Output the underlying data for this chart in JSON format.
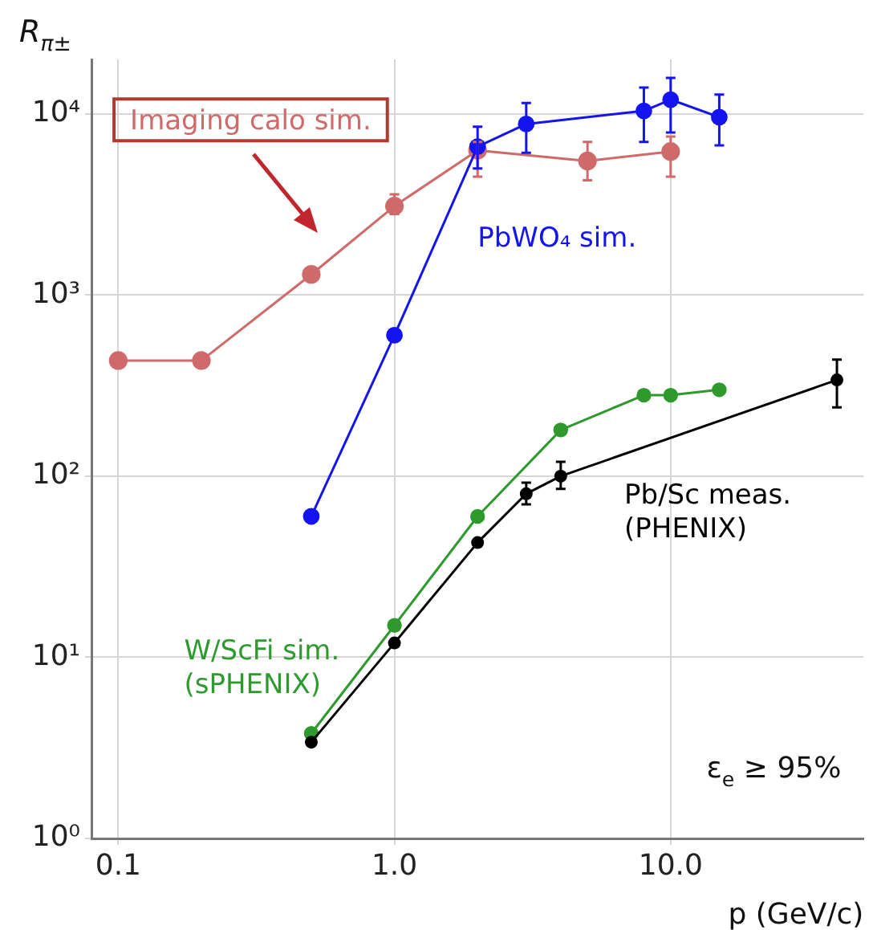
{
  "chart_data": {
    "type": "line",
    "ylabel": "R$_{π±}$",
    "xlabel": "p (GeV/c)",
    "log": "xy",
    "grid": true,
    "legend": false,
    "marker": "circle",
    "line_style": "solid",
    "xlim": [
      0.08,
      50
    ],
    "ylim": [
      1,
      20000
    ],
    "xticks": [
      {
        "value": 0.1,
        "label": "0.1"
      },
      {
        "value": 1,
        "label": "1.0"
      },
      {
        "value": 10,
        "label": "10.0"
      }
    ],
    "yticks": [
      {
        "value": 1,
        "label": "10⁰"
      },
      {
        "value": 10,
        "label": "10¹"
      },
      {
        "value": 100,
        "label": "10²"
      },
      {
        "value": 1000,
        "label": "10³"
      },
      {
        "value": 10000,
        "label": "10⁴"
      }
    ],
    "series": [
      {
        "name": "Imaging calo sim.",
        "color": "#d06a6a",
        "x": [
          0.1,
          0.2,
          0.5,
          1,
          2,
          5,
          10
        ],
        "values": [
          435,
          435,
          1300,
          3100,
          6300,
          5500,
          6200
        ],
        "errors": [
          null,
          null,
          null,
          [
            2800,
            3600
          ],
          [
            4500,
            7000
          ],
          [
            4300,
            7000
          ],
          [
            4500,
            7500
          ]
        ]
      },
      {
        "name": "PbWO₄ sim.",
        "color": "#1414f0",
        "x": [
          0.5,
          1,
          2,
          3,
          8,
          10,
          15
        ],
        "values": [
          60,
          600,
          6600,
          8800,
          10400,
          12000,
          9600
        ],
        "errors": [
          null,
          null,
          [
            5000,
            8500
          ],
          [
            6100,
            11500
          ],
          [
            7000,
            14000
          ],
          [
            7900,
            15800
          ],
          [
            6700,
            12800
          ]
        ]
      },
      {
        "name": "W/ScFi sim.\n(sPHENIX)",
        "color": "#2e9a2e",
        "x": [
          0.5,
          1,
          2,
          4,
          8,
          10,
          15
        ],
        "values": [
          3.8,
          15,
          60,
          180,
          280,
          280,
          300
        ]
      },
      {
        "name": "Pb/Sc meas.\n(PHENIX)",
        "color": "#000000",
        "x": [
          0.5,
          1,
          2,
          3,
          4,
          40
        ],
        "values": [
          3.4,
          12,
          43,
          80,
          100,
          340
        ],
        "errors": [
          null,
          null,
          null,
          [
            70,
            92
          ],
          [
            85,
            120
          ],
          [
            240,
            440
          ]
        ]
      }
    ],
    "annotations": [
      "ε$_{e}$ ≥ 95%"
    ]
  }
}
